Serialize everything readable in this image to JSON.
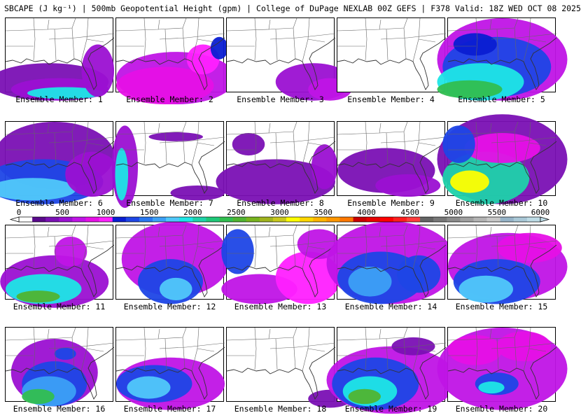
{
  "header": {
    "title": "SBCAPE (J kg⁻¹) | 500mb Geopotential Height (gpm) | College of DuPage NEXLAB 00Z GEFS | F378 Valid: 18Z WED OCT 08 2025"
  },
  "colorbar": {
    "labels": [
      "0",
      "500",
      "1000",
      "1500",
      "2000",
      "2500",
      "3000",
      "3500",
      "4000",
      "4500",
      "5000",
      "5500",
      "6000"
    ],
    "colors": [
      "#ffffff",
      "#5a0a8c",
      "#7a10b4",
      "#9b10d2",
      "#c014e6",
      "#e610e6",
      "#ff20ff",
      "#0a1ed2",
      "#1e46e6",
      "#2878f0",
      "#3ca0f5",
      "#50c8fa",
      "#1ee6e6",
      "#1ed2aa",
      "#1ec878",
      "#32be50",
      "#50b432",
      "#78b41e",
      "#a0b41e",
      "#c8c81e",
      "#ffff00",
      "#ffd700",
      "#ffb400",
      "#ff9600",
      "#ff7800",
      "#c80000",
      "#e60000",
      "#ff0000",
      "#ff1e1e",
      "#ff3c3c",
      "#646464",
      "#787878",
      "#8c8c8c",
      "#a0a0a0",
      "#b4b4b4",
      "#c8c8c8",
      "#96b4c8",
      "#aac8d7",
      "#bedce6"
    ]
  },
  "panels": [
    {
      "label": "Ensemble Member: 1",
      "blobs": [
        [
          0.4,
          0.85,
          0.55,
          0.25,
          "#7a10b4"
        ],
        [
          0.5,
          0.95,
          0.45,
          0.15,
          "#9b10d2"
        ],
        [
          0.55,
          1.0,
          0.35,
          0.08,
          "#1ee6e6"
        ],
        [
          0.85,
          0.7,
          0.15,
          0.35,
          "#9b10d2"
        ]
      ]
    },
    {
      "label": "Ensemble Member: 2",
      "blobs": [
        [
          0.55,
          0.8,
          0.55,
          0.35,
          "#c014e6"
        ],
        [
          0.45,
          0.9,
          0.45,
          0.25,
          "#e610e6"
        ],
        [
          0.8,
          0.55,
          0.15,
          0.2,
          "#ff20ff"
        ],
        [
          0.95,
          0.4,
          0.08,
          0.15,
          "#0a1ed2"
        ]
      ]
    },
    {
      "label": "Ensemble Member: 3",
      "blobs": [
        [
          0.8,
          0.85,
          0.35,
          0.25,
          "#9b10d2"
        ],
        [
          0.95,
          0.95,
          0.2,
          0.15,
          "#c014e6"
        ]
      ]
    },
    {
      "label": "Ensemble Member: 4",
      "blobs": []
    },
    {
      "label": "Ensemble Member: 5",
      "blobs": [
        [
          0.5,
          0.55,
          0.6,
          0.55,
          "#c014e6"
        ],
        [
          0.45,
          0.65,
          0.5,
          0.4,
          "#1e46e6"
        ],
        [
          0.3,
          0.85,
          0.4,
          0.25,
          "#1ee6e6"
        ],
        [
          0.2,
          0.95,
          0.3,
          0.12,
          "#32be50"
        ],
        [
          0.25,
          0.35,
          0.2,
          0.15,
          "#0a1ed2"
        ]
      ]
    },
    {
      "label": "Ensemble Member: 6",
      "blobs": [
        [
          0.45,
          0.45,
          0.55,
          0.45,
          "#7a10b4"
        ],
        [
          0.35,
          0.8,
          0.55,
          0.3,
          "#1e46e6"
        ],
        [
          0.25,
          0.9,
          0.4,
          0.15,
          "#50c8fa"
        ],
        [
          0.8,
          0.7,
          0.25,
          0.3,
          "#9b10d2"
        ]
      ]
    },
    {
      "label": "Ensemble Member: 7",
      "blobs": [
        [
          0.08,
          0.6,
          0.12,
          0.55,
          "#9b10d2"
        ],
        [
          0.05,
          0.7,
          0.06,
          0.35,
          "#1ee6e6"
        ],
        [
          0.55,
          0.2,
          0.25,
          0.06,
          "#7a10b4"
        ],
        [
          0.75,
          0.95,
          0.25,
          0.1,
          "#7a10b4"
        ]
      ]
    },
    {
      "label": "Ensemble Member: 8",
      "blobs": [
        [
          0.45,
          0.8,
          0.55,
          0.3,
          "#7a10b4"
        ],
        [
          0.2,
          0.3,
          0.15,
          0.15,
          "#7a10b4"
        ],
        [
          0.9,
          0.6,
          0.12,
          0.3,
          "#9b10d2"
        ]
      ]
    },
    {
      "label": "Ensemble Member: 9",
      "blobs": [
        [
          0.45,
          0.65,
          0.45,
          0.3,
          "#7a10b4"
        ],
        [
          0.65,
          0.85,
          0.3,
          0.15,
          "#9b10d2"
        ]
      ]
    },
    {
      "label": "Ensemble Member: 10",
      "blobs": [
        [
          0.5,
          0.5,
          0.6,
          0.6,
          "#7a10b4"
        ],
        [
          0.35,
          0.75,
          0.4,
          0.35,
          "#1ed2aa"
        ],
        [
          0.2,
          0.8,
          0.18,
          0.15,
          "#ffff00"
        ],
        [
          0.5,
          0.35,
          0.35,
          0.2,
          "#e610e6"
        ],
        [
          0.1,
          0.3,
          0.15,
          0.25,
          "#1e46e6"
        ]
      ]
    },
    {
      "label": "Ensemble Member: 11",
      "blobs": [
        [
          0.45,
          0.75,
          0.5,
          0.35,
          "#9b10d2"
        ],
        [
          0.35,
          0.85,
          0.35,
          0.2,
          "#1ee6e6"
        ],
        [
          0.3,
          0.95,
          0.2,
          0.08,
          "#50b432"
        ],
        [
          0.6,
          0.35,
          0.15,
          0.2,
          "#c014e6"
        ]
      ]
    },
    {
      "label": "Ensemble Member: 12",
      "blobs": [
        [
          0.55,
          0.45,
          0.5,
          0.5,
          "#c014e6"
        ],
        [
          0.5,
          0.75,
          0.3,
          0.3,
          "#1e46e6"
        ],
        [
          0.55,
          0.85,
          0.15,
          0.15,
          "#50c8fa"
        ]
      ]
    },
    {
      "label": "Ensemble Member: 13",
      "blobs": [
        [
          0.1,
          0.35,
          0.15,
          0.3,
          "#1e46e6"
        ],
        [
          0.3,
          0.85,
          0.35,
          0.2,
          "#c014e6"
        ],
        [
          0.75,
          0.7,
          0.3,
          0.35,
          "#ff20ff"
        ],
        [
          0.85,
          0.25,
          0.2,
          0.2,
          "#c014e6"
        ]
      ]
    },
    {
      "label": "Ensemble Member: 14",
      "blobs": [
        [
          0.5,
          0.5,
          0.6,
          0.55,
          "#c014e6"
        ],
        [
          0.4,
          0.7,
          0.4,
          0.35,
          "#1e46e6"
        ],
        [
          0.3,
          0.75,
          0.2,
          0.2,
          "#3ca0f5"
        ],
        [
          0.75,
          0.65,
          0.2,
          0.25,
          "#1e46e6"
        ]
      ]
    },
    {
      "label": "Ensemble Member: 15",
      "blobs": [
        [
          0.55,
          0.55,
          0.55,
          0.45,
          "#c014e6"
        ],
        [
          0.45,
          0.75,
          0.4,
          0.3,
          "#1e46e6"
        ],
        [
          0.35,
          0.85,
          0.25,
          0.18,
          "#50c8fa"
        ],
        [
          0.75,
          0.3,
          0.3,
          0.2,
          "#e610e6"
        ]
      ]
    },
    {
      "label": "Ensemble Member: 16",
      "blobs": [
        [
          0.45,
          0.6,
          0.4,
          0.45,
          "#9b10d2"
        ],
        [
          0.45,
          0.75,
          0.3,
          0.3,
          "#1e46e6"
        ],
        [
          0.4,
          0.85,
          0.25,
          0.2,
          "#3ca0f5"
        ],
        [
          0.3,
          0.92,
          0.15,
          0.1,
          "#32be50"
        ],
        [
          0.55,
          0.35,
          0.1,
          0.08,
          "#1e46e6"
        ]
      ]
    },
    {
      "label": "Ensemble Member: 17",
      "blobs": [
        [
          0.5,
          0.75,
          0.5,
          0.35,
          "#c014e6"
        ],
        [
          0.35,
          0.75,
          0.35,
          0.25,
          "#1e46e6"
        ],
        [
          0.3,
          0.8,
          0.2,
          0.15,
          "#50c8fa"
        ]
      ]
    },
    {
      "label": "Ensemble Member: 18",
      "blobs": [
        [
          0.95,
          0.95,
          0.2,
          0.12,
          "#7a10b4"
        ]
      ]
    },
    {
      "label": "Ensemble Member: 19",
      "blobs": [
        [
          0.5,
          0.7,
          0.6,
          0.45,
          "#c014e6"
        ],
        [
          0.35,
          0.75,
          0.4,
          0.35,
          "#1e46e6"
        ],
        [
          0.3,
          0.85,
          0.25,
          0.2,
          "#1ee6e6"
        ],
        [
          0.25,
          0.92,
          0.15,
          0.1,
          "#50b432"
        ],
        [
          0.7,
          0.25,
          0.2,
          0.12,
          "#7a10b4"
        ]
      ]
    },
    {
      "label": "Ensemble Member: 20",
      "blobs": [
        [
          0.5,
          0.55,
          0.6,
          0.55,
          "#c014e6"
        ],
        [
          0.25,
          0.3,
          0.25,
          0.2,
          "#e610e6"
        ],
        [
          0.7,
          0.25,
          0.25,
          0.2,
          "#e610e6"
        ],
        [
          0.45,
          0.75,
          0.2,
          0.15,
          "#1e46e6"
        ],
        [
          0.4,
          0.8,
          0.12,
          0.08,
          "#1ee6e6"
        ]
      ]
    }
  ]
}
